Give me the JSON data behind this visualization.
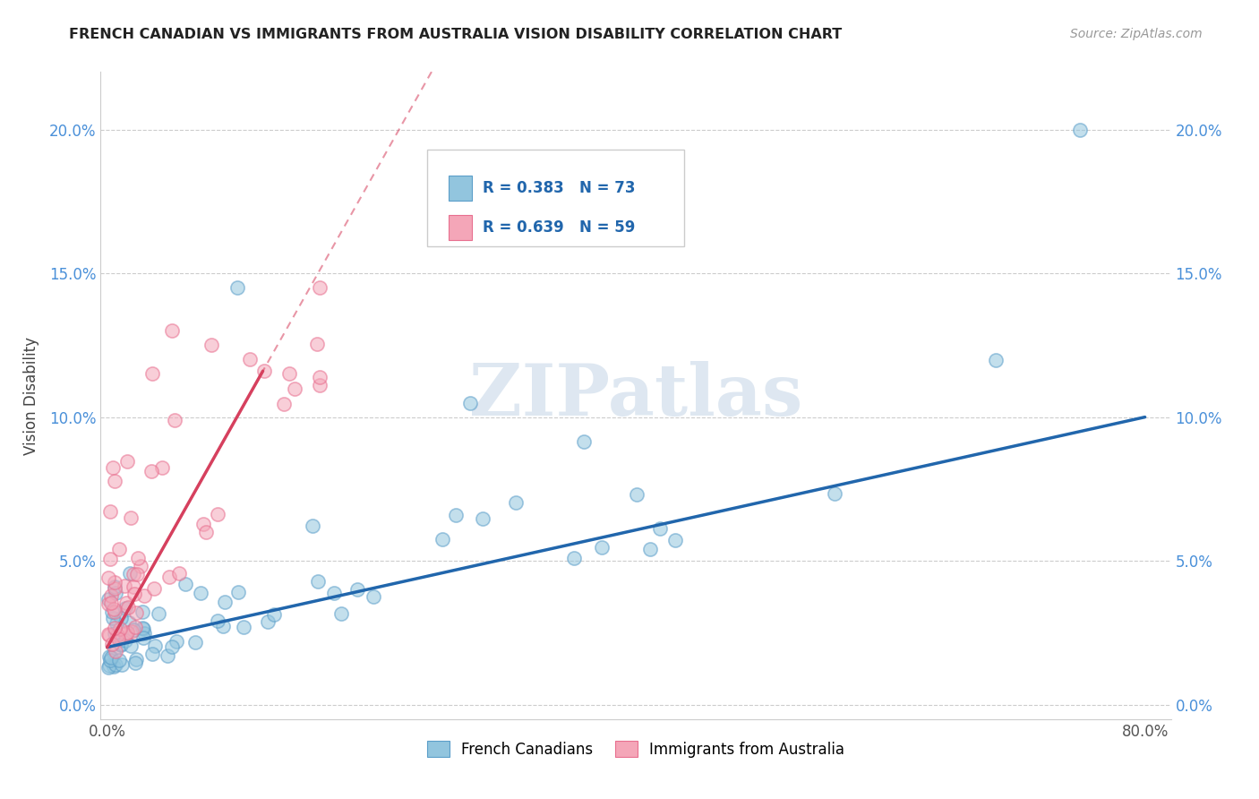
{
  "title": "FRENCH CANADIAN VS IMMIGRANTS FROM AUSTRALIA VISION DISABILITY CORRELATION CHART",
  "source": "Source: ZipAtlas.com",
  "ylabel": "Vision Disability",
  "xlim": [
    -0.005,
    0.82
  ],
  "ylim": [
    -0.005,
    0.22
  ],
  "xticks": [
    0.0,
    0.8
  ],
  "xticklabels": [
    "0.0%",
    "80.0%"
  ],
  "yticks": [
    0.0,
    0.05,
    0.1,
    0.15,
    0.2
  ],
  "yticklabels": [
    "0.0%",
    "5.0%",
    "10.0%",
    "15.0%",
    "20.0%"
  ],
  "blue_color": "#92c5de",
  "pink_color": "#f4a6b8",
  "blue_edge_color": "#5b9ec9",
  "pink_edge_color": "#e86f8f",
  "blue_line_color": "#2166ac",
  "pink_line_color": "#d6405e",
  "grid_color": "#cccccc",
  "tick_color": "#4a90d9",
  "legend_label_blue": "French Canadians",
  "legend_label_pink": "Immigrants from Australia",
  "watermark_color": "#c8d8e8"
}
